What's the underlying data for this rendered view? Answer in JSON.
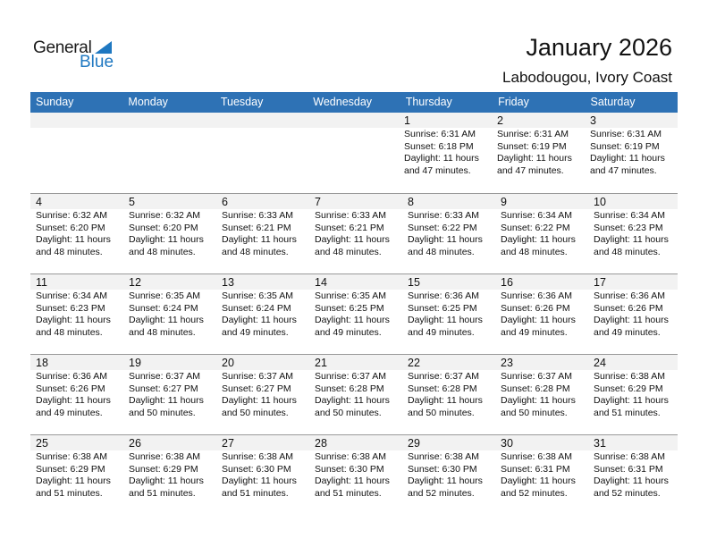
{
  "logo": {
    "word1": "General",
    "word2": "Blue",
    "brand_color": "#1f78c1"
  },
  "title": "January 2026",
  "subtitle": "Labodougou, Ivory Coast",
  "header_color": "#2e72b5",
  "days": [
    "Sunday",
    "Monday",
    "Tuesday",
    "Wednesday",
    "Thursday",
    "Friday",
    "Saturday"
  ],
  "weeks": [
    [
      null,
      null,
      null,
      null,
      {
        "day": "1",
        "sunrise": "Sunrise: 6:31 AM",
        "sunset": "Sunset: 6:18 PM",
        "daylight": "Daylight: 11 hours and 47 minutes."
      },
      {
        "day": "2",
        "sunrise": "Sunrise: 6:31 AM",
        "sunset": "Sunset: 6:19 PM",
        "daylight": "Daylight: 11 hours and 47 minutes."
      },
      {
        "day": "3",
        "sunrise": "Sunrise: 6:31 AM",
        "sunset": "Sunset: 6:19 PM",
        "daylight": "Daylight: 11 hours and 47 minutes."
      }
    ],
    [
      {
        "day": "4",
        "sunrise": "Sunrise: 6:32 AM",
        "sunset": "Sunset: 6:20 PM",
        "daylight": "Daylight: 11 hours and 48 minutes."
      },
      {
        "day": "5",
        "sunrise": "Sunrise: 6:32 AM",
        "sunset": "Sunset: 6:20 PM",
        "daylight": "Daylight: 11 hours and 48 minutes."
      },
      {
        "day": "6",
        "sunrise": "Sunrise: 6:33 AM",
        "sunset": "Sunset: 6:21 PM",
        "daylight": "Daylight: 11 hours and 48 minutes."
      },
      {
        "day": "7",
        "sunrise": "Sunrise: 6:33 AM",
        "sunset": "Sunset: 6:21 PM",
        "daylight": "Daylight: 11 hours and 48 minutes."
      },
      {
        "day": "8",
        "sunrise": "Sunrise: 6:33 AM",
        "sunset": "Sunset: 6:22 PM",
        "daylight": "Daylight: 11 hours and 48 minutes."
      },
      {
        "day": "9",
        "sunrise": "Sunrise: 6:34 AM",
        "sunset": "Sunset: 6:22 PM",
        "daylight": "Daylight: 11 hours and 48 minutes."
      },
      {
        "day": "10",
        "sunrise": "Sunrise: 6:34 AM",
        "sunset": "Sunset: 6:23 PM",
        "daylight": "Daylight: 11 hours and 48 minutes."
      }
    ],
    [
      {
        "day": "11",
        "sunrise": "Sunrise: 6:34 AM",
        "sunset": "Sunset: 6:23 PM",
        "daylight": "Daylight: 11 hours and 48 minutes."
      },
      {
        "day": "12",
        "sunrise": "Sunrise: 6:35 AM",
        "sunset": "Sunset: 6:24 PM",
        "daylight": "Daylight: 11 hours and 48 minutes."
      },
      {
        "day": "13",
        "sunrise": "Sunrise: 6:35 AM",
        "sunset": "Sunset: 6:24 PM",
        "daylight": "Daylight: 11 hours and 49 minutes."
      },
      {
        "day": "14",
        "sunrise": "Sunrise: 6:35 AM",
        "sunset": "Sunset: 6:25 PM",
        "daylight": "Daylight: 11 hours and 49 minutes."
      },
      {
        "day": "15",
        "sunrise": "Sunrise: 6:36 AM",
        "sunset": "Sunset: 6:25 PM",
        "daylight": "Daylight: 11 hours and 49 minutes."
      },
      {
        "day": "16",
        "sunrise": "Sunrise: 6:36 AM",
        "sunset": "Sunset: 6:26 PM",
        "daylight": "Daylight: 11 hours and 49 minutes."
      },
      {
        "day": "17",
        "sunrise": "Sunrise: 6:36 AM",
        "sunset": "Sunset: 6:26 PM",
        "daylight": "Daylight: 11 hours and 49 minutes."
      }
    ],
    [
      {
        "day": "18",
        "sunrise": "Sunrise: 6:36 AM",
        "sunset": "Sunset: 6:26 PM",
        "daylight": "Daylight: 11 hours and 49 minutes."
      },
      {
        "day": "19",
        "sunrise": "Sunrise: 6:37 AM",
        "sunset": "Sunset: 6:27 PM",
        "daylight": "Daylight: 11 hours and 50 minutes."
      },
      {
        "day": "20",
        "sunrise": "Sunrise: 6:37 AM",
        "sunset": "Sunset: 6:27 PM",
        "daylight": "Daylight: 11 hours and 50 minutes."
      },
      {
        "day": "21",
        "sunrise": "Sunrise: 6:37 AM",
        "sunset": "Sunset: 6:28 PM",
        "daylight": "Daylight: 11 hours and 50 minutes."
      },
      {
        "day": "22",
        "sunrise": "Sunrise: 6:37 AM",
        "sunset": "Sunset: 6:28 PM",
        "daylight": "Daylight: 11 hours and 50 minutes."
      },
      {
        "day": "23",
        "sunrise": "Sunrise: 6:37 AM",
        "sunset": "Sunset: 6:28 PM",
        "daylight": "Daylight: 11 hours and 50 minutes."
      },
      {
        "day": "24",
        "sunrise": "Sunrise: 6:38 AM",
        "sunset": "Sunset: 6:29 PM",
        "daylight": "Daylight: 11 hours and 51 minutes."
      }
    ],
    [
      {
        "day": "25",
        "sunrise": "Sunrise: 6:38 AM",
        "sunset": "Sunset: 6:29 PM",
        "daylight": "Daylight: 11 hours and 51 minutes."
      },
      {
        "day": "26",
        "sunrise": "Sunrise: 6:38 AM",
        "sunset": "Sunset: 6:29 PM",
        "daylight": "Daylight: 11 hours and 51 minutes."
      },
      {
        "day": "27",
        "sunrise": "Sunrise: 6:38 AM",
        "sunset": "Sunset: 6:30 PM",
        "daylight": "Daylight: 11 hours and 51 minutes."
      },
      {
        "day": "28",
        "sunrise": "Sunrise: 6:38 AM",
        "sunset": "Sunset: 6:30 PM",
        "daylight": "Daylight: 11 hours and 51 minutes."
      },
      {
        "day": "29",
        "sunrise": "Sunrise: 6:38 AM",
        "sunset": "Sunset: 6:30 PM",
        "daylight": "Daylight: 11 hours and 52 minutes."
      },
      {
        "day": "30",
        "sunrise": "Sunrise: 6:38 AM",
        "sunset": "Sunset: 6:31 PM",
        "daylight": "Daylight: 11 hours and 52 minutes."
      },
      {
        "day": "31",
        "sunrise": "Sunrise: 6:38 AM",
        "sunset": "Sunset: 6:31 PM",
        "daylight": "Daylight: 11 hours and 52 minutes."
      }
    ]
  ]
}
